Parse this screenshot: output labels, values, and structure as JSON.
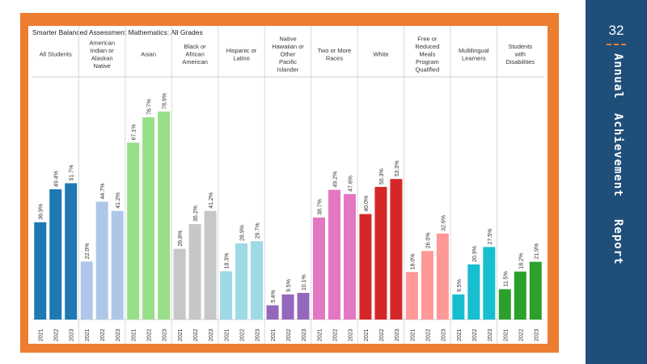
{
  "sidebar": {
    "page_number": "32",
    "words": [
      "Annual",
      "Achievement",
      "Report"
    ]
  },
  "chart_data": {
    "type": "bar",
    "title": "Smarter Balanced Assessment Mathematics: All Grades",
    "xlabel": "",
    "ylabel": "",
    "ylim": [
      0,
      85
    ],
    "grid": false,
    "years": [
      "2021",
      "2022",
      "2023"
    ],
    "groups": [
      {
        "name": "All Students",
        "color": "#1f77b4",
        "values": [
          36.9,
          49.4,
          51.7
        ],
        "labels": [
          "36.9%",
          "49.4%",
          "51.7%"
        ]
      },
      {
        "name": "American Indian or Alaskan Native",
        "color": "#aec7e8",
        "values": [
          22.0,
          44.7,
          41.2
        ],
        "labels": [
          "22.0%",
          "44.7%",
          "41.2%"
        ]
      },
      {
        "name": "Asian",
        "color": "#98df8a",
        "values": [
          67.1,
          76.7,
          78.9
        ],
        "labels": [
          "67.1%",
          "76.7%",
          "78.9%"
        ]
      },
      {
        "name": "Black or African American",
        "color": "#c7c7c7",
        "values": [
          26.8,
          36.2,
          41.2
        ],
        "labels": [
          "26.8%",
          "36.2%",
          "41.2%"
        ]
      },
      {
        "name": "Hispanic or Latino",
        "color": "#9edae5",
        "values": [
          18.3,
          28.9,
          29.7
        ],
        "labels": [
          "18.3%",
          "28.9%",
          "29.7%"
        ]
      },
      {
        "name": "Native Hawaiian or Other Pacific Islander",
        "color": "#9467bd",
        "values": [
          5.4,
          9.5,
          10.1
        ],
        "labels": [
          "5.4%",
          "9.5%",
          "10.1%"
        ]
      },
      {
        "name": "Two or More Races",
        "color": "#e377c2",
        "values": [
          38.7,
          49.2,
          47.6
        ],
        "labels": [
          "38.7%",
          "49.2%",
          "47.6%"
        ]
      },
      {
        "name": "White",
        "color": "#d62728",
        "values": [
          40.0,
          50.3,
          53.3
        ],
        "labels": [
          "40.0%",
          "50.3%",
          "53.3%"
        ]
      },
      {
        "name": "Free or Reduced Meals Program Qualified",
        "color": "#ff9896",
        "values": [
          18.0,
          26.0,
          32.6
        ],
        "labels": [
          "18.0%",
          "26.0%",
          "32.6%"
        ]
      },
      {
        "name": "Multilingual Learners",
        "color": "#17becf",
        "values": [
          9.5,
          20.9,
          27.5
        ],
        "labels": [
          "9.5%",
          "20.9%",
          "27.5%"
        ]
      },
      {
        "name": "Students with Disabilities",
        "color": "#2ca02c",
        "values": [
          11.5,
          18.2,
          21.9
        ],
        "labels": [
          "11.5%",
          "18.2%",
          "21.9%"
        ]
      }
    ]
  }
}
